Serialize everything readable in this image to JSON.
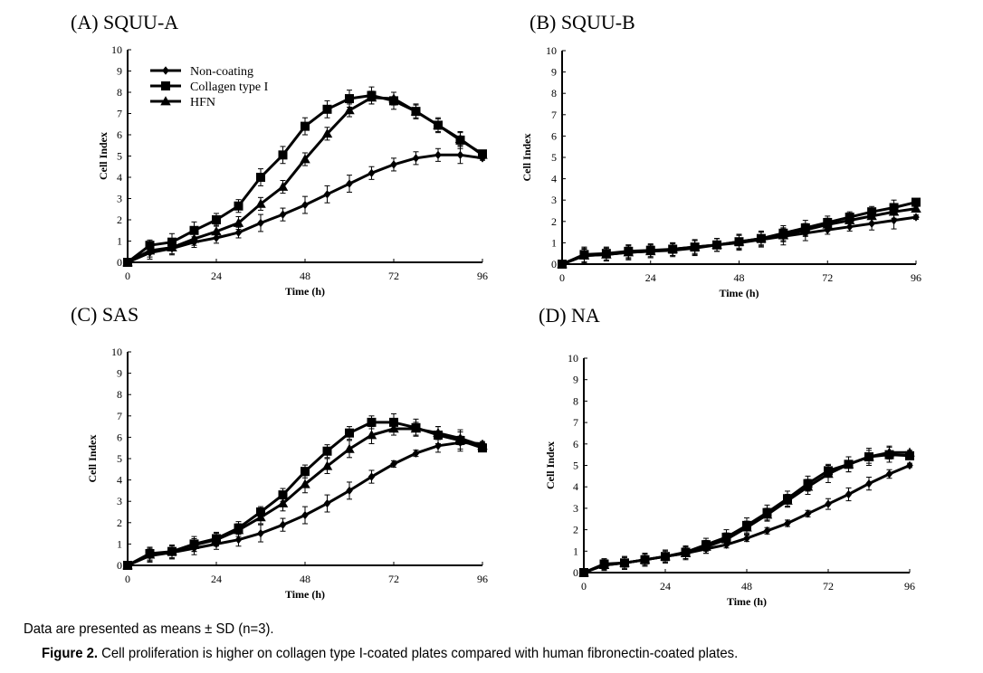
{
  "figure": {
    "note": "Data are presented as means ± SD (n=3).",
    "caption_label": "Figure 2.",
    "caption_text": " Cell proliferation is higher on collagen type I-coated plates compared with human fibronectin-coated plates."
  },
  "legend": {
    "entries": [
      {
        "name": "Non-coating",
        "marker": "diamond"
      },
      {
        "name": "Collagen type I",
        "marker": "square"
      },
      {
        "name": "HFN",
        "marker": "triangle"
      }
    ],
    "placement": "top-left of panel A"
  },
  "chart_data": [
    {
      "id": "A",
      "type": "line",
      "title": "(A) SQUU-A",
      "xlabel": "Time (h)",
      "ylabel": "Cell Index",
      "xlim": [
        0,
        96
      ],
      "ylim": [
        0,
        10
      ],
      "xticks": [
        0,
        24,
        48,
        72,
        96
      ],
      "yticks": [
        0,
        1,
        2,
        3,
        4,
        5,
        6,
        7,
        8,
        9,
        10
      ],
      "grid": false,
      "x": [
        0,
        6,
        12,
        18,
        24,
        30,
        36,
        42,
        48,
        54,
        60,
        66,
        72,
        78,
        84,
        90,
        96
      ],
      "series": [
        {
          "name": "Non-coating",
          "marker": "diamond",
          "values": [
            0,
            0.45,
            0.65,
            0.95,
            1.15,
            1.4,
            1.85,
            2.25,
            2.7,
            3.2,
            3.7,
            4.2,
            4.6,
            4.9,
            5.05,
            5.05,
            4.9
          ],
          "sd": [
            0.15,
            0.3,
            0.3,
            0.25,
            0.25,
            0.25,
            0.4,
            0.3,
            0.4,
            0.4,
            0.4,
            0.3,
            0.3,
            0.3,
            0.3,
            0.4,
            0.1
          ]
        },
        {
          "name": "Collagen type I",
          "marker": "square",
          "values": [
            0,
            0.8,
            0.95,
            1.5,
            2.0,
            2.65,
            4.0,
            5.05,
            6.4,
            7.2,
            7.7,
            7.85,
            7.6,
            7.1,
            6.45,
            5.75,
            5.1
          ],
          "sd": [
            0.1,
            0.25,
            0.4,
            0.4,
            0.3,
            0.3,
            0.4,
            0.4,
            0.4,
            0.4,
            0.4,
            0.4,
            0.4,
            0.35,
            0.35,
            0.4,
            0.1
          ]
        },
        {
          "name": "HFN",
          "marker": "triangle",
          "values": [
            0,
            0.55,
            0.7,
            1.1,
            1.45,
            1.85,
            2.75,
            3.55,
            4.85,
            6.05,
            7.15,
            7.75,
            7.7,
            7.1,
            6.45,
            5.8,
            5.05
          ],
          "sd": [
            0.1,
            0.3,
            0.3,
            0.3,
            0.3,
            0.3,
            0.3,
            0.3,
            0.3,
            0.3,
            0.3,
            0.3,
            0.3,
            0.3,
            0.3,
            0.3,
            0.1
          ]
        }
      ]
    },
    {
      "id": "B",
      "type": "line",
      "title": "(B) SQUU-B",
      "xlabel": "Time (h)",
      "ylabel": "Cell Index",
      "xlim": [
        0,
        96
      ],
      "ylim": [
        0,
        10
      ],
      "xticks": [
        0,
        24,
        48,
        72,
        96
      ],
      "yticks": [
        0,
        1,
        2,
        3,
        4,
        5,
        6,
        7,
        8,
        9,
        10
      ],
      "grid": false,
      "x": [
        0,
        6,
        12,
        18,
        24,
        30,
        36,
        42,
        48,
        54,
        60,
        66,
        72,
        78,
        84,
        90,
        96
      ],
      "series": [
        {
          "name": "Non-coating",
          "marker": "diamond",
          "values": [
            0,
            0.4,
            0.45,
            0.55,
            0.6,
            0.65,
            0.75,
            0.9,
            1.0,
            1.15,
            1.3,
            1.45,
            1.6,
            1.75,
            1.9,
            2.05,
            2.2
          ],
          "sd": [
            0.1,
            0.35,
            0.3,
            0.35,
            0.3,
            0.3,
            0.35,
            0.3,
            0.35,
            0.35,
            0.4,
            0.35,
            0.2,
            0.2,
            0.3,
            0.4,
            0.1
          ]
        },
        {
          "name": "Collagen type I",
          "marker": "square",
          "values": [
            0,
            0.45,
            0.5,
            0.6,
            0.65,
            0.7,
            0.8,
            0.9,
            1.05,
            1.2,
            1.45,
            1.7,
            1.95,
            2.2,
            2.45,
            2.65,
            2.9
          ],
          "sd": [
            0.1,
            0.35,
            0.3,
            0.3,
            0.3,
            0.3,
            0.35,
            0.3,
            0.35,
            0.35,
            0.35,
            0.35,
            0.3,
            0.25,
            0.25,
            0.35,
            0.1
          ]
        },
        {
          "name": "HFN",
          "marker": "triangle",
          "values": [
            0,
            0.4,
            0.45,
            0.55,
            0.6,
            0.7,
            0.8,
            0.9,
            1.05,
            1.2,
            1.35,
            1.6,
            1.85,
            2.05,
            2.25,
            2.45,
            2.6
          ],
          "sd": [
            0.1,
            0.3,
            0.3,
            0.3,
            0.3,
            0.3,
            0.3,
            0.3,
            0.3,
            0.3,
            0.3,
            0.3,
            0.3,
            0.3,
            0.3,
            0.3,
            0.1
          ]
        }
      ]
    },
    {
      "id": "C",
      "type": "line",
      "title": "(C) SAS",
      "xlabel": "Time (h)",
      "ylabel": "Cell Index",
      "xlim": [
        0,
        96
      ],
      "ylim": [
        0,
        10
      ],
      "xticks": [
        0,
        24,
        48,
        72,
        96
      ],
      "yticks": [
        0,
        1,
        2,
        3,
        4,
        5,
        6,
        7,
        8,
        9,
        10
      ],
      "grid": false,
      "x": [
        0,
        6,
        12,
        18,
        24,
        30,
        36,
        42,
        48,
        54,
        60,
        66,
        72,
        78,
        84,
        90,
        96
      ],
      "series": [
        {
          "name": "Non-coating",
          "marker": "diamond",
          "values": [
            0,
            0.45,
            0.6,
            0.8,
            1.0,
            1.2,
            1.5,
            1.9,
            2.35,
            2.9,
            3.5,
            4.15,
            4.75,
            5.25,
            5.6,
            5.75,
            5.7
          ],
          "sd": [
            0.1,
            0.3,
            0.3,
            0.3,
            0.25,
            0.3,
            0.4,
            0.3,
            0.4,
            0.4,
            0.4,
            0.3,
            0.15,
            0.15,
            0.3,
            0.3,
            0.1
          ]
        },
        {
          "name": "Collagen type I",
          "marker": "square",
          "values": [
            0,
            0.55,
            0.65,
            1.0,
            1.25,
            1.75,
            2.5,
            3.3,
            4.4,
            5.35,
            6.2,
            6.7,
            6.7,
            6.45,
            6.1,
            5.85,
            5.5
          ],
          "sd": [
            0.1,
            0.3,
            0.3,
            0.35,
            0.3,
            0.3,
            0.25,
            0.3,
            0.3,
            0.3,
            0.3,
            0.3,
            0.4,
            0.4,
            0.4,
            0.5,
            0.1
          ]
        },
        {
          "name": "HFN",
          "marker": "triangle",
          "values": [
            0,
            0.5,
            0.65,
            0.95,
            1.2,
            1.65,
            2.25,
            2.9,
            3.8,
            4.65,
            5.45,
            6.1,
            6.4,
            6.4,
            6.2,
            5.95,
            5.6
          ],
          "sd": [
            0.1,
            0.3,
            0.3,
            0.3,
            0.3,
            0.3,
            0.3,
            0.35,
            0.4,
            0.35,
            0.4,
            0.4,
            0.3,
            0.3,
            0.3,
            0.3,
            0.1
          ]
        }
      ]
    },
    {
      "id": "D",
      "type": "line",
      "title": "(D) NA",
      "xlabel": "Time (h)",
      "ylabel": "Cell Index",
      "xlim": [
        0,
        96
      ],
      "ylim": [
        0,
        10
      ],
      "xticks": [
        0,
        24,
        48,
        72,
        96
      ],
      "yticks": [
        0,
        1,
        2,
        3,
        4,
        5,
        6,
        7,
        8,
        9,
        10
      ],
      "grid": false,
      "x": [
        0,
        6,
        12,
        18,
        24,
        30,
        36,
        42,
        48,
        54,
        60,
        66,
        72,
        78,
        84,
        90,
        96
      ],
      "series": [
        {
          "name": "Non-coating",
          "marker": "diamond",
          "values": [
            0,
            0.35,
            0.45,
            0.6,
            0.75,
            0.9,
            1.1,
            1.3,
            1.6,
            1.95,
            2.3,
            2.75,
            3.2,
            3.65,
            4.15,
            4.6,
            5.0
          ],
          "sd": [
            0.1,
            0.25,
            0.25,
            0.25,
            0.25,
            0.25,
            0.2,
            0.15,
            0.15,
            0.15,
            0.15,
            0.15,
            0.25,
            0.3,
            0.3,
            0.2,
            0.1
          ]
        },
        {
          "name": "Collagen type I",
          "marker": "square",
          "values": [
            0,
            0.4,
            0.45,
            0.6,
            0.75,
            0.95,
            1.3,
            1.65,
            2.2,
            2.8,
            3.45,
            4.15,
            4.75,
            5.05,
            5.4,
            5.5,
            5.45
          ],
          "sd": [
            0.1,
            0.25,
            0.3,
            0.3,
            0.3,
            0.3,
            0.3,
            0.35,
            0.35,
            0.35,
            0.35,
            0.35,
            0.3,
            0.35,
            0.4,
            0.35,
            0.1
          ]
        },
        {
          "name": "HFN",
          "marker": "triangle",
          "values": [
            0,
            0.35,
            0.45,
            0.6,
            0.75,
            0.9,
            1.2,
            1.55,
            2.1,
            2.7,
            3.35,
            4.0,
            4.6,
            5.05,
            5.4,
            5.6,
            5.6
          ],
          "sd": [
            0.1,
            0.25,
            0.3,
            0.3,
            0.3,
            0.3,
            0.3,
            0.3,
            0.3,
            0.3,
            0.3,
            0.35,
            0.4,
            0.35,
            0.3,
            0.3,
            0.1
          ]
        }
      ]
    }
  ]
}
